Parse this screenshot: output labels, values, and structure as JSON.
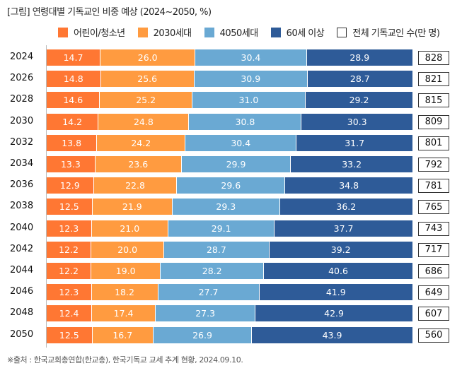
{
  "chart_data": {
    "type": "bar",
    "orientation": "horizontal-stacked-100",
    "title": "[그림] 연령대별 기독교인 비중 예상 (2024~2050, %)",
    "categories": [
      "2024",
      "2026",
      "2028",
      "2030",
      "2032",
      "2034",
      "2036",
      "2038",
      "2040",
      "2042",
      "2044",
      "2046",
      "2048",
      "2050"
    ],
    "series": [
      {
        "name": "어린이/청소년",
        "color": "#FF7733",
        "values": [
          14.7,
          14.8,
          14.6,
          14.2,
          13.8,
          13.3,
          12.9,
          12.5,
          12.3,
          12.2,
          12.2,
          12.3,
          12.4,
          12.5
        ]
      },
      {
        "name": "2030세대",
        "color": "#FF9B40",
        "values": [
          26.0,
          25.6,
          25.2,
          24.8,
          24.2,
          23.6,
          22.8,
          21.9,
          21.0,
          20.0,
          19.0,
          18.2,
          17.4,
          16.7
        ]
      },
      {
        "name": "4050세대",
        "color": "#6AA9D3",
        "values": [
          30.4,
          30.9,
          31.0,
          30.8,
          30.4,
          29.9,
          29.6,
          29.3,
          29.1,
          28.7,
          28.2,
          27.7,
          27.3,
          26.9
        ]
      },
      {
        "name": "60세 이상",
        "color": "#2E5B98",
        "values": [
          28.9,
          28.7,
          29.2,
          30.3,
          31.7,
          33.2,
          34.8,
          36.2,
          37.7,
          39.2,
          40.6,
          41.9,
          42.9,
          43.9
        ]
      }
    ],
    "totals": {
      "name": "전체 기독교인 수(만 명)",
      "values": [
        828,
        821,
        815,
        809,
        801,
        792,
        781,
        765,
        743,
        717,
        686,
        649,
        607,
        560
      ]
    },
    "legend": "top",
    "grid": false
  },
  "source": "※출처 : 한국교회총연합(한교총), 한국기독교 교세 추계 현황, 2024.09.10."
}
